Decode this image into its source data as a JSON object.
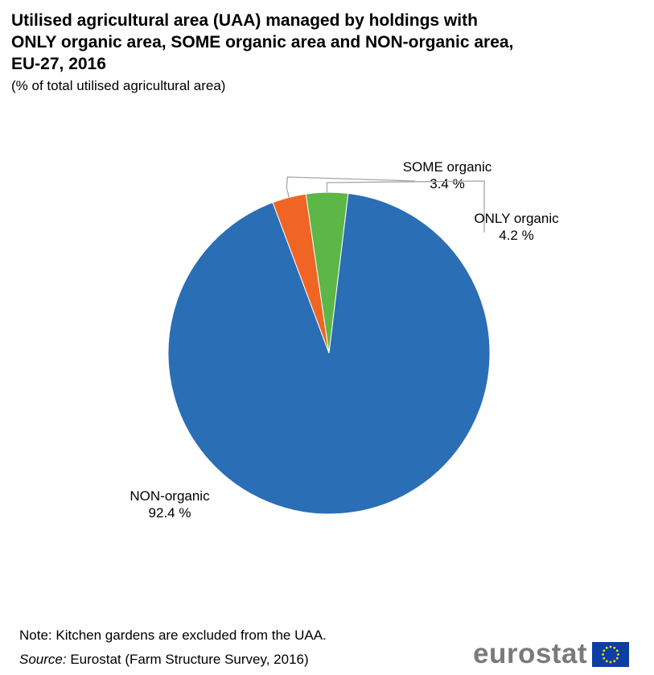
{
  "header": {
    "title": "Utilised agricultural area (UAA) managed by holdings with ONLY organic area, SOME organic area and NON-organic area, EU-27, 2016",
    "subtitle": "(% of total utilised agricultural area)"
  },
  "chart_data": {
    "type": "pie",
    "title": "Utilised agricultural area (UAA) managed by holdings with ONLY organic area, SOME organic area and NON-organic area, EU-27, 2016",
    "subtitle": "(% of total utilised agricultural area)",
    "unit": "%",
    "slices": [
      {
        "name": "SOME organic",
        "value": 3.4,
        "value_label": "3.4 %",
        "color": "#f06424"
      },
      {
        "name": "ONLY organic",
        "value": 4.2,
        "value_label": "4.2 %",
        "color": "#5cb746"
      },
      {
        "name": "NON-organic",
        "value": 92.4,
        "value_label": "92.4 %",
        "color": "#2a6eb5"
      }
    ],
    "leader_line_color": "#a6a6a6"
  },
  "footer": {
    "note": "Note: Kitchen gardens are excluded from the UAA.",
    "source_label": "Source:",
    "source_text": " Eurostat (Farm Structure Survey, 2016)",
    "logo_text": "eurostat",
    "logo_flag_color": "#0d3fa3",
    "logo_star_color": "#ffdd00"
  }
}
